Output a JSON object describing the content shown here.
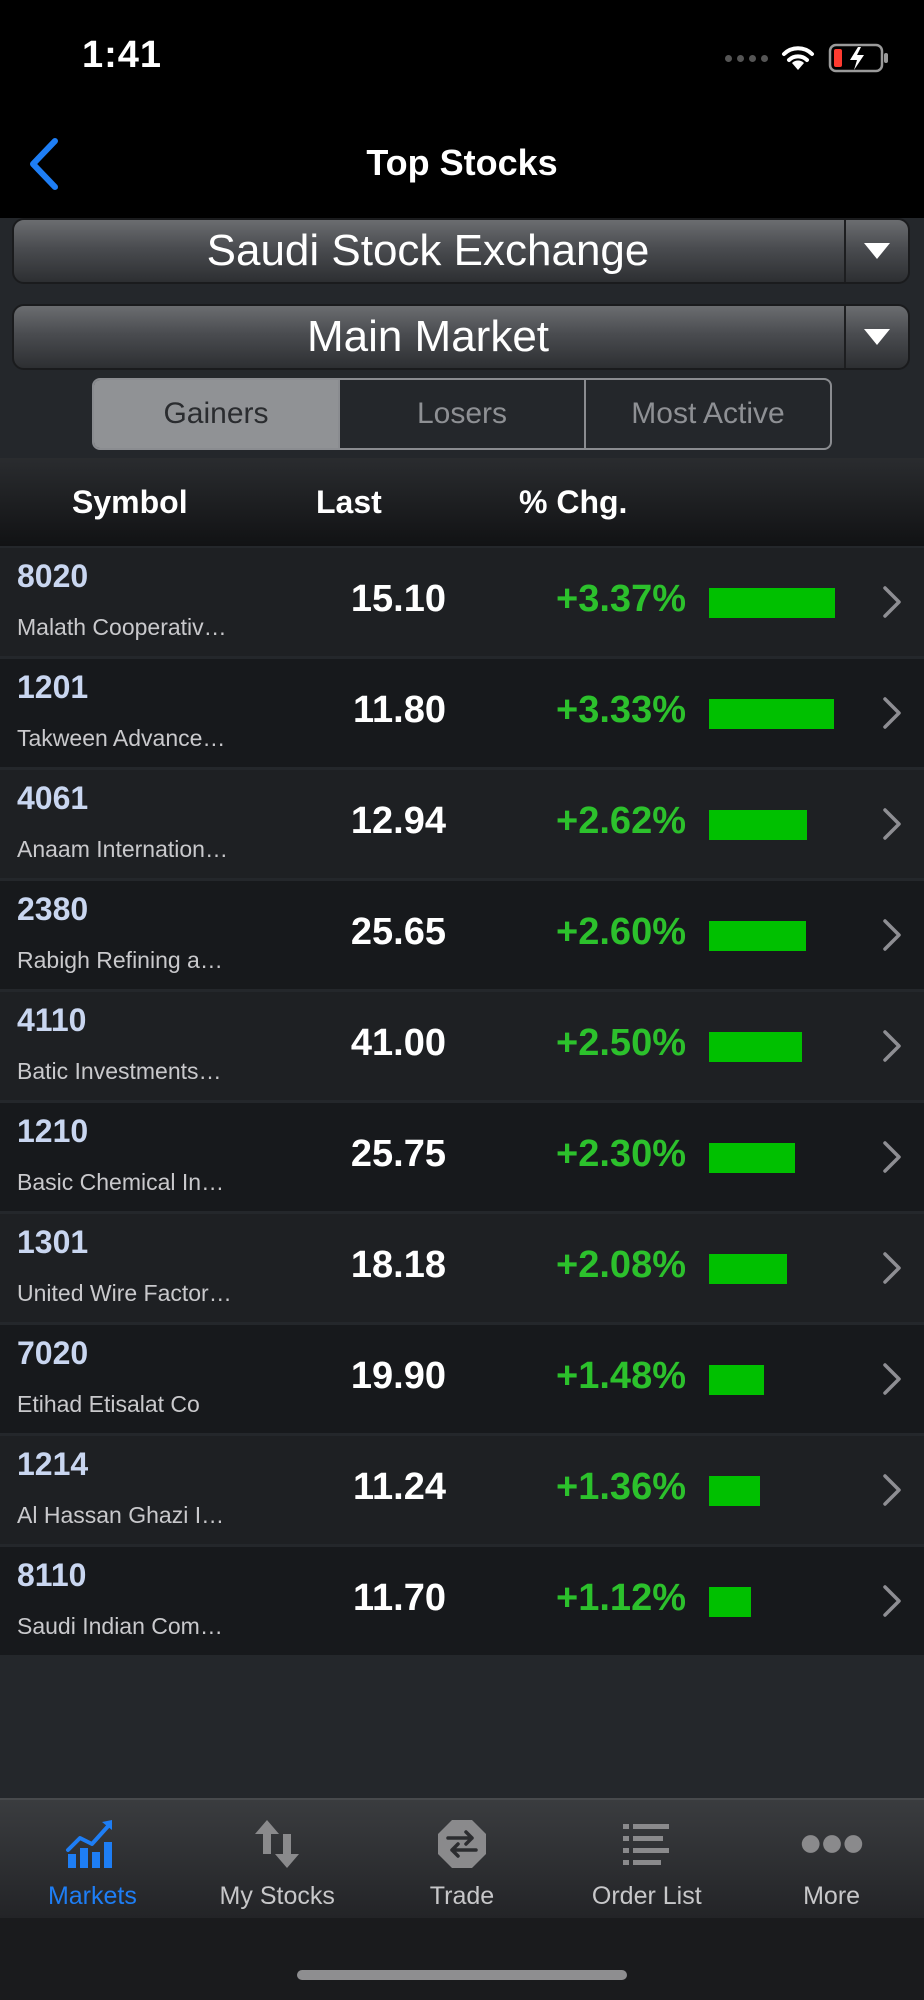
{
  "status": {
    "time": "1:41"
  },
  "nav": {
    "title": "Top Stocks"
  },
  "filters": {
    "exchange": "Saudi Stock Exchange",
    "market": "Main Market"
  },
  "tabs": [
    {
      "label": "Gainers",
      "selected": true
    },
    {
      "label": "Losers",
      "selected": false
    },
    {
      "label": "Most Active",
      "selected": false
    }
  ],
  "table": {
    "headers": {
      "symbol": "Symbol",
      "last": "Last",
      "chg": "% Chg."
    },
    "rows": [
      {
        "symbol": "8020",
        "name": "Malath Cooperativ…",
        "last": "15.10",
        "chg": "+3.37%",
        "chg_value": 3.37
      },
      {
        "symbol": "1201",
        "name": "Takween Advance…",
        "last": "11.80",
        "chg": "+3.33%",
        "chg_value": 3.33
      },
      {
        "symbol": "4061",
        "name": "Anaam Internation…",
        "last": "12.94",
        "chg": "+2.62%",
        "chg_value": 2.62
      },
      {
        "symbol": "2380",
        "name": "Rabigh Refining a…",
        "last": "25.65",
        "chg": "+2.60%",
        "chg_value": 2.6
      },
      {
        "symbol": "4110",
        "name": "Batic Investments…",
        "last": "41.00",
        "chg": "+2.50%",
        "chg_value": 2.5
      },
      {
        "symbol": "1210",
        "name": "Basic Chemical In…",
        "last": "25.75",
        "chg": "+2.30%",
        "chg_value": 2.3
      },
      {
        "symbol": "1301",
        "name": "United Wire Factor…",
        "last": "18.18",
        "chg": "+2.08%",
        "chg_value": 2.08
      },
      {
        "symbol": "7020",
        "name": "Etihad Etisalat Co",
        "last": "19.90",
        "chg": "+1.48%",
        "chg_value": 1.48
      },
      {
        "symbol": "1214",
        "name": "Al Hassan Ghazi I…",
        "last": "11.24",
        "chg": "+1.36%",
        "chg_value": 1.36
      },
      {
        "symbol": "8110",
        "name": "Saudi Indian Com…",
        "last": "11.70",
        "chg": "+1.12%",
        "chg_value": 1.12
      }
    ]
  },
  "bottom_tabs": [
    {
      "label": "Markets",
      "icon": "markets-chart-icon",
      "active": true
    },
    {
      "label": "My Stocks",
      "icon": "up-down-arrows-icon",
      "active": false
    },
    {
      "label": "Trade",
      "icon": "trade-exchange-icon",
      "active": false
    },
    {
      "label": "Order List",
      "icon": "list-icon",
      "active": false
    },
    {
      "label": "More",
      "icon": "more-dots-icon",
      "active": false
    }
  ],
  "colors": {
    "accent": "#1e7ef5",
    "gain": "#2cc12c",
    "bar": "#00c000"
  }
}
